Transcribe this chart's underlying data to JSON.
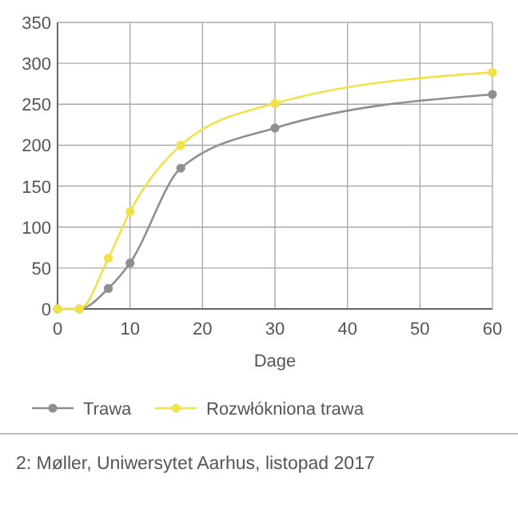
{
  "chart_data": {
    "type": "line",
    "x": [
      0,
      3,
      7,
      10,
      17,
      30,
      60
    ],
    "series": [
      {
        "name": "Trawa",
        "color": "#8f8f8f",
        "values": [
          0,
          0,
          25,
          56,
          172,
          221,
          262
        ]
      },
      {
        "name": "Rozwłókniona trawa",
        "color": "#f2e24a",
        "values": [
          0,
          0,
          62,
          119,
          200,
          251,
          289
        ]
      }
    ],
    "xlabel": "Dage",
    "xlim": [
      0,
      60
    ],
    "xticks": [
      0,
      10,
      20,
      30,
      40,
      50,
      60
    ],
    "ylim": [
      0,
      350
    ],
    "yticks": [
      0,
      50,
      100,
      150,
      200,
      250,
      300,
      350
    ],
    "grid": true,
    "legend": "bottom",
    "marker": "circle",
    "line_style": "solid",
    "annotations": [
      "2: Møller, Uniwersytet Aarhus, listopad 2017"
    ]
  }
}
